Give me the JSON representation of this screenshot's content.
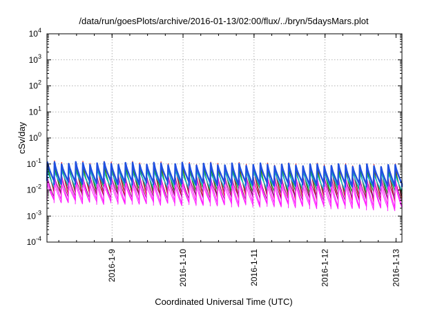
{
  "chart_data": {
    "type": "line",
    "title": "/data/run/goesPlots/archive/2016-01-13/02:00/flux/../bryn/5daysMars.plot",
    "xlabel": "Coordinated Universal Time (UTC)",
    "ylabel": "cSv/day",
    "yscale": "log",
    "ylim": [
      0.0001,
      10000
    ],
    "xlim": [
      "2016-01-08 02:00",
      "2016-01-13 02:00"
    ],
    "grid": true,
    "legend": "none",
    "x_tick_labels": [
      "2016-1-9",
      "2016-1-10",
      "2016-1-11",
      "2016-1-12",
      "2016-1-13"
    ],
    "y_tick_labels": [
      {
        "base": "10",
        "exp": "-4"
      },
      {
        "base": "10",
        "exp": "-3"
      },
      {
        "base": "10",
        "exp": "-2"
      },
      {
        "base": "10",
        "exp": "-1"
      },
      {
        "base": "10",
        "exp": "0"
      },
      {
        "base": "10",
        "exp": "1"
      },
      {
        "base": "10",
        "exp": "2"
      },
      {
        "base": "10",
        "exp": "3"
      },
      {
        "base": "10",
        "exp": "4"
      }
    ],
    "cycles_per_day": 10,
    "series": [
      {
        "color": "#e00000",
        "peak_start": 0.12,
        "peak_end": 0.09,
        "trough_start": 0.007,
        "trough_end": 0.0038,
        "width": 1.0
      },
      {
        "color": "#8a1a6a",
        "peak_start": 0.1,
        "peak_end": 0.075,
        "trough_start": 0.009,
        "trough_end": 0.005,
        "width": 1.0
      },
      {
        "color": "#00b000",
        "peak_start": 0.085,
        "peak_end": 0.06,
        "trough_start": 0.012,
        "trough_end": 0.008,
        "width": 1.2
      },
      {
        "color": "#1cb8c8",
        "peak_start": 0.06,
        "peak_end": 0.045,
        "trough_start": 0.015,
        "trough_end": 0.011,
        "width": 1.4
      },
      {
        "color": "#8a1a6a",
        "peak_start": 0.035,
        "peak_end": 0.03,
        "trough_start": 0.006,
        "trough_end": 0.004,
        "width": 1.0
      },
      {
        "color": "#ff1fff",
        "peak_start": 0.03,
        "peak_end": 0.025,
        "trough_start": 0.004,
        "trough_end": 0.0022,
        "width": 1.3
      },
      {
        "color": "#ff1fff",
        "peak_start": 0.018,
        "peak_end": 0.015,
        "trough_start": 0.0035,
        "trough_end": 0.0018,
        "width": 1.0
      },
      {
        "color": "#2050e0",
        "peak_start": 0.11,
        "peak_end": 0.085,
        "trough_start": 0.02,
        "trough_end": 0.015,
        "width": 2.4
      }
    ]
  }
}
